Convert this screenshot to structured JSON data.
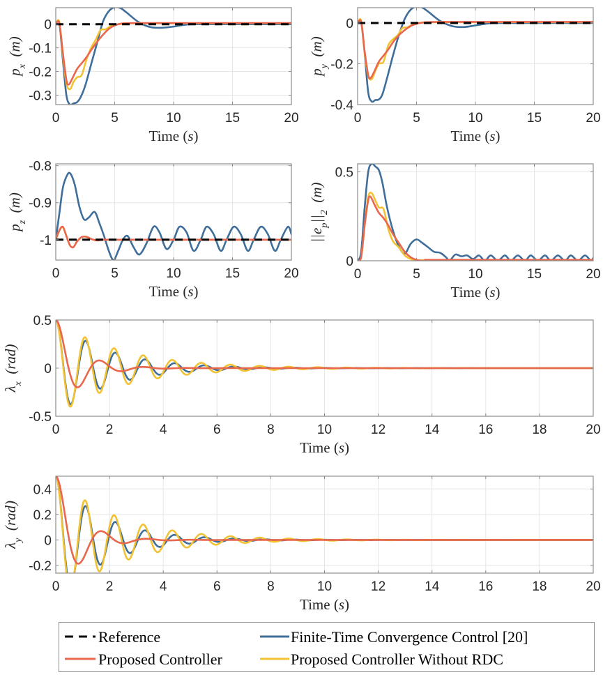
{
  "colors": {
    "reference": "#000000",
    "ftcc": "#3f6e9a",
    "proposed": "#e8674d",
    "without_rdc": "#f2c232",
    "grid": "#e6e6e6",
    "axis": "#8c8c8c"
  },
  "legend": {
    "items": [
      {
        "key": "reference",
        "label": "Reference",
        "style": "dashed"
      },
      {
        "key": "ftcc",
        "label": "Finite-Time Convergence Control [20]",
        "style": "solid"
      },
      {
        "key": "proposed",
        "label": "Proposed Controller",
        "style": "solid"
      },
      {
        "key": "without_rdc",
        "label": "Proposed Controller Without RDC",
        "style": "solid"
      }
    ]
  },
  "chart_data": [
    {
      "id": "px",
      "type": "line",
      "title": "",
      "xlabel": "Time (s)",
      "ylabel": "p_x (m)",
      "xlim": [
        0,
        20
      ],
      "ylim": [
        -0.34,
        0.07
      ],
      "xticks": [
        0,
        5,
        10,
        15,
        20
      ],
      "yticks": [
        0,
        -0.1,
        -0.2,
        -0.3
      ],
      "ytick_labels": [
        "0",
        "-0.1",
        "-0.2",
        "-0.3"
      ],
      "grid": true,
      "series": [
        {
          "name": "Reference",
          "key": "reference",
          "x": [
            0,
            20
          ],
          "y": [
            0,
            0
          ]
        },
        {
          "name": "Finite-Time Convergence Control [20]",
          "key": "ftcc",
          "x": [
            0,
            0.3,
            0.6,
            0.9,
            1.2,
            1.5,
            1.8,
            2.1,
            2.5,
            3,
            3.5,
            4,
            4.5,
            5,
            5.5,
            6,
            7,
            8,
            9,
            10,
            11,
            12,
            14,
            20
          ],
          "y": [
            0,
            0.005,
            -0.15,
            -0.3,
            -0.34,
            -0.335,
            -0.33,
            -0.31,
            -0.26,
            -0.17,
            -0.08,
            0.01,
            0.055,
            0.072,
            0.068,
            0.05,
            0.01,
            -0.012,
            -0.015,
            -0.01,
            -0.002,
            0,
            0,
            0
          ]
        },
        {
          "name": "Proposed Controller",
          "key": "proposed",
          "x": [
            0,
            0.3,
            0.6,
            0.9,
            1.1,
            1.4,
            1.8,
            2.2,
            2.6,
            3,
            3.5,
            4,
            4.5,
            5,
            5.5,
            6,
            7,
            8,
            20
          ],
          "y": [
            0,
            0.005,
            -0.12,
            -0.235,
            -0.255,
            -0.23,
            -0.19,
            -0.165,
            -0.14,
            -0.11,
            -0.075,
            -0.045,
            -0.02,
            -0.005,
            0.002,
            0.004,
            0.005,
            0.005,
            0.005
          ]
        },
        {
          "name": "Proposed Controller Without RDC",
          "key": "without_rdc",
          "x": [
            0,
            0.3,
            0.6,
            0.9,
            1.2,
            1.5,
            1.8,
            2.2,
            2.6,
            3,
            3.4,
            3.8,
            4.2,
            4.6,
            5,
            6,
            7,
            20
          ],
          "y": [
            0,
            0.01,
            -0.13,
            -0.25,
            -0.275,
            -0.245,
            -0.225,
            -0.215,
            -0.15,
            -0.1,
            -0.065,
            -0.025,
            -0.022,
            -0.01,
            -0.002,
            0.003,
            0.004,
            0.004
          ]
        }
      ]
    },
    {
      "id": "py",
      "type": "line",
      "title": "",
      "xlabel": "Time (s)",
      "ylabel": "p_y (m)",
      "xlim": [
        0,
        20
      ],
      "ylim": [
        -0.4,
        0.075
      ],
      "xticks": [
        0,
        5,
        10,
        15,
        20
      ],
      "yticks": [
        0,
        -0.2,
        -0.4
      ],
      "ytick_labels": [
        "0",
        "-0.2",
        "-0.4"
      ],
      "grid": true,
      "series": [
        {
          "name": "Reference",
          "key": "reference",
          "x": [
            0,
            20
          ],
          "y": [
            0,
            0
          ]
        },
        {
          "name": "Finite-Time Convergence Control [20]",
          "key": "ftcc",
          "x": [
            0,
            0.3,
            0.6,
            0.9,
            1.2,
            1.5,
            1.8,
            2.1,
            2.5,
            3,
            3.5,
            4,
            4.5,
            5,
            5.5,
            6,
            7,
            8,
            9,
            10,
            11,
            12,
            14,
            20
          ],
          "y": [
            0,
            0.005,
            -0.15,
            -0.34,
            -0.385,
            -0.378,
            -0.375,
            -0.35,
            -0.27,
            -0.16,
            -0.06,
            0.02,
            0.065,
            0.08,
            0.075,
            0.055,
            0.01,
            -0.015,
            -0.02,
            -0.012,
            -0.003,
            0,
            0,
            0
          ]
        },
        {
          "name": "Proposed Controller",
          "key": "proposed",
          "x": [
            0,
            0.3,
            0.6,
            0.9,
            1.1,
            1.4,
            1.8,
            2.2,
            2.6,
            3,
            3.5,
            4,
            4.5,
            5,
            5.5,
            6,
            7,
            8,
            20
          ],
          "y": [
            0,
            0.005,
            -0.14,
            -0.255,
            -0.27,
            -0.24,
            -0.19,
            -0.16,
            -0.13,
            -0.095,
            -0.06,
            -0.035,
            -0.015,
            -0.004,
            0.002,
            0.004,
            0.005,
            0.005,
            0.005
          ]
        },
        {
          "name": "Proposed Controller Without RDC",
          "key": "without_rdc",
          "x": [
            0,
            0.3,
            0.6,
            0.9,
            1.2,
            1.5,
            1.8,
            2.2,
            2.6,
            3,
            3.4,
            3.8,
            4.2,
            4.6,
            5,
            6,
            7,
            20
          ],
          "y": [
            0,
            0.01,
            -0.15,
            -0.26,
            -0.275,
            -0.235,
            -0.2,
            -0.19,
            -0.11,
            -0.08,
            -0.06,
            -0.025,
            -0.022,
            -0.01,
            -0.002,
            0.003,
            0.004,
            0.004
          ]
        }
      ]
    },
    {
      "id": "pz",
      "type": "line",
      "title": "",
      "xlabel": "Time (s)",
      "ylabel": "p_z (m)",
      "xlim": [
        0,
        20
      ],
      "ylim": [
        -1.055,
        -0.795
      ],
      "xticks": [
        0,
        5,
        10,
        15,
        20
      ],
      "yticks": [
        -0.8,
        -0.9,
        -1
      ],
      "ytick_labels": [
        "-0.8",
        "-0.9",
        "-1"
      ],
      "grid": true,
      "series": [
        {
          "name": "Reference",
          "key": "reference",
          "x": [
            0,
            20
          ],
          "y": [
            -1,
            -1
          ]
        },
        {
          "name": "Finite-Time Convergence Control [20]",
          "key": "ftcc",
          "x": [
            0,
            0.3,
            0.6,
            0.9,
            1.2,
            1.6,
            2,
            2.4,
            2.8,
            3.3,
            3.7,
            4.1,
            4.5,
            4.9,
            5.3,
            5.7,
            6.1,
            6.6,
            7.1,
            7.7,
            8.3,
            8.8,
            9.4,
            10,
            10.5,
            11.1,
            11.7,
            12.3,
            12.8,
            13.4,
            14,
            14.5,
            15.1,
            15.7,
            16.3,
            16.8,
            17.4,
            18,
            18.6,
            19.1,
            19.7,
            20
          ],
          "y": [
            -1,
            -0.93,
            -0.86,
            -0.83,
            -0.82,
            -0.85,
            -0.91,
            -0.945,
            -0.94,
            -0.925,
            -0.955,
            -0.99,
            -1.03,
            -1.055,
            -1.03,
            -1.0,
            -0.99,
            -1.02,
            -1.04,
            -1.01,
            -0.965,
            -0.98,
            -1.025,
            -1.0,
            -0.965,
            -0.98,
            -1.03,
            -1.0,
            -0.965,
            -0.985,
            -1.03,
            -1.0,
            -0.965,
            -0.985,
            -1.03,
            -1.0,
            -0.965,
            -0.985,
            -1.03,
            -1.0,
            -0.965,
            -0.985
          ]
        },
        {
          "name": "Proposed Controller",
          "key": "proposed",
          "x": [
            0,
            0.3,
            0.6,
            0.9,
            1.2,
            1.5,
            1.8,
            2.2,
            2.6,
            3,
            3.5,
            4,
            5,
            20
          ],
          "y": [
            -1,
            -0.975,
            -0.965,
            -0.99,
            -1.015,
            -1.02,
            -1.005,
            -0.993,
            -0.992,
            -0.998,
            -1.002,
            -1,
            -1,
            -1
          ]
        },
        {
          "name": "Proposed Controller Without RDC",
          "key": "without_rdc",
          "x": [
            0,
            0.3,
            0.6,
            0.9,
            1.2,
            1.5,
            1.8,
            2.2,
            2.6,
            3,
            3.5,
            4,
            5,
            20
          ],
          "y": [
            -1,
            -0.976,
            -0.966,
            -0.99,
            -1.015,
            -1.02,
            -1.005,
            -0.993,
            -0.992,
            -0.998,
            -1.002,
            -1,
            -1,
            -1
          ]
        }
      ]
    },
    {
      "id": "ep",
      "type": "line",
      "title": "",
      "xlabel": "Time (s)",
      "ylabel": "||e_p||_2 (m)",
      "xlim": [
        0,
        20
      ],
      "ylim": [
        0,
        0.545
      ],
      "xticks": [
        0,
        5,
        10,
        15,
        20
      ],
      "yticks": [
        0,
        0.5
      ],
      "ytick_labels": [
        "0",
        "0.5"
      ],
      "grid": true,
      "series": [
        {
          "name": "Finite-Time Convergence Control [20]",
          "key": "ftcc",
          "x": [
            0,
            0.3,
            0.6,
            0.9,
            1.2,
            1.5,
            1.8,
            2.1,
            2.5,
            3,
            3.5,
            4,
            4.5,
            5,
            5.5,
            6,
            6.5,
            7,
            7.5,
            7.8,
            8.3,
            8.8,
            9.3,
            9.8,
            10.3,
            10.8,
            11.3,
            11.9,
            12.5,
            13,
            13.6,
            14.2,
            14.7,
            15.3,
            15.9,
            16.4,
            17,
            17.6,
            18.1,
            18.7,
            19.3,
            19.8,
            20
          ],
          "y": [
            0,
            0.05,
            0.3,
            0.5,
            0.545,
            0.53,
            0.51,
            0.44,
            0.3,
            0.17,
            0.08,
            0.04,
            0.095,
            0.12,
            0.1,
            0.075,
            0.05,
            0.045,
            0.02,
            0.0,
            0.035,
            0.025,
            0.03,
            0.01,
            0.03,
            0.0,
            0.03,
            0.0,
            0.03,
            0.0,
            0.03,
            0.0,
            0.03,
            0.0,
            0.03,
            0.0,
            0.03,
            0.0,
            0.03,
            0.0,
            0.03,
            0.0,
            0.015
          ]
        },
        {
          "name": "Proposed Controller",
          "key": "proposed",
          "x": [
            0,
            0.3,
            0.6,
            0.9,
            1.1,
            1.4,
            1.8,
            2.2,
            2.6,
            3,
            3.5,
            4,
            4.5,
            5,
            5.5,
            6,
            7,
            20
          ],
          "y": [
            0,
            0.02,
            0.2,
            0.34,
            0.36,
            0.32,
            0.27,
            0.24,
            0.2,
            0.15,
            0.1,
            0.05,
            0.02,
            0.005,
            0.0,
            0.005,
            0.005,
            0.005
          ]
        },
        {
          "name": "Proposed Controller Without RDC",
          "key": "without_rdc",
          "x": [
            0,
            0.3,
            0.6,
            0.9,
            1.2,
            1.5,
            1.8,
            2.2,
            2.6,
            3,
            3.5,
            4,
            4.5,
            5,
            6,
            20
          ],
          "y": [
            0,
            0.02,
            0.2,
            0.36,
            0.38,
            0.34,
            0.3,
            0.29,
            0.18,
            0.11,
            0.075,
            0.03,
            0.01,
            0.003,
            0.003,
            0.003
          ]
        }
      ]
    },
    {
      "id": "lambda_x",
      "type": "line",
      "title": "",
      "xlabel": "Time (s)",
      "ylabel": "λ_x (rad)",
      "xlim": [
        0,
        20
      ],
      "ylim": [
        -0.5,
        0.5
      ],
      "xticks": [
        0,
        2,
        4,
        6,
        8,
        10,
        12,
        14,
        16,
        18,
        20
      ],
      "yticks": [
        0.5,
        0,
        -0.5
      ],
      "ytick_labels": [
        "0.5",
        "0",
        "-0.5"
      ],
      "grid": true,
      "series": [
        {
          "name": "Finite-Time Convergence Control [20]",
          "key": "ftcc",
          "model": {
            "A": 0.5,
            "zeta": 0.09,
            "period": 1.1,
            "settle": 0
          },
          "x": [],
          "y": []
        },
        {
          "name": "Proposed Controller",
          "key": "proposed",
          "model": {
            "A": 0.5,
            "zeta": 0.28,
            "period": 1.55,
            "settle": 0
          },
          "x": [],
          "y": []
        },
        {
          "name": "Proposed Controller Without RDC",
          "key": "without_rdc",
          "model": {
            "A": 0.5,
            "zeta": 0.07,
            "period": 1.08,
            "settle": 0
          },
          "x": [],
          "y": []
        }
      ],
      "features": {
        "min_ftcc": -0.26,
        "min_proposed": -0.26,
        "min_without_rdc": -0.3,
        "peak1_without_rdc": 0.13,
        "peak1_ftcc": 0.07,
        "peak1_proposed": 0.05
      }
    },
    {
      "id": "lambda_y",
      "type": "line",
      "title": "",
      "xlabel": "Time (s)",
      "ylabel": "λ_y (rad)",
      "xlim": [
        0,
        20
      ],
      "ylim": [
        -0.26,
        0.5
      ],
      "xticks": [
        0,
        2,
        4,
        6,
        8,
        10,
        12,
        14,
        16,
        18,
        20
      ],
      "yticks": [
        0.4,
        0.2,
        0,
        -0.2
      ],
      "ytick_labels": [
        "0.4",
        "0.2",
        "0",
        "-0.2"
      ],
      "grid": true,
      "series": [
        {
          "name": "Finite-Time Convergence Control [20]",
          "key": "ftcc",
          "model": {
            "A": 0.5,
            "zeta": 0.1,
            "period": 1.1,
            "settle": 0
          },
          "x": [],
          "y": []
        },
        {
          "name": "Proposed Controller",
          "key": "proposed",
          "model": {
            "A": 0.5,
            "zeta": 0.3,
            "period": 1.6,
            "settle": 0
          },
          "x": [],
          "y": []
        },
        {
          "name": "Proposed Controller Without RDC",
          "key": "without_rdc",
          "model": {
            "A": 0.5,
            "zeta": 0.075,
            "period": 1.08,
            "settle": 0
          },
          "x": [],
          "y": []
        }
      ],
      "features": {
        "min_ftcc": -0.22,
        "min_proposed": -0.23,
        "min_without_rdc": -0.26,
        "peak1_without_rdc": 0.1,
        "peak1_ftcc": 0.06,
        "peak1_proposed": 0.045
      }
    }
  ]
}
